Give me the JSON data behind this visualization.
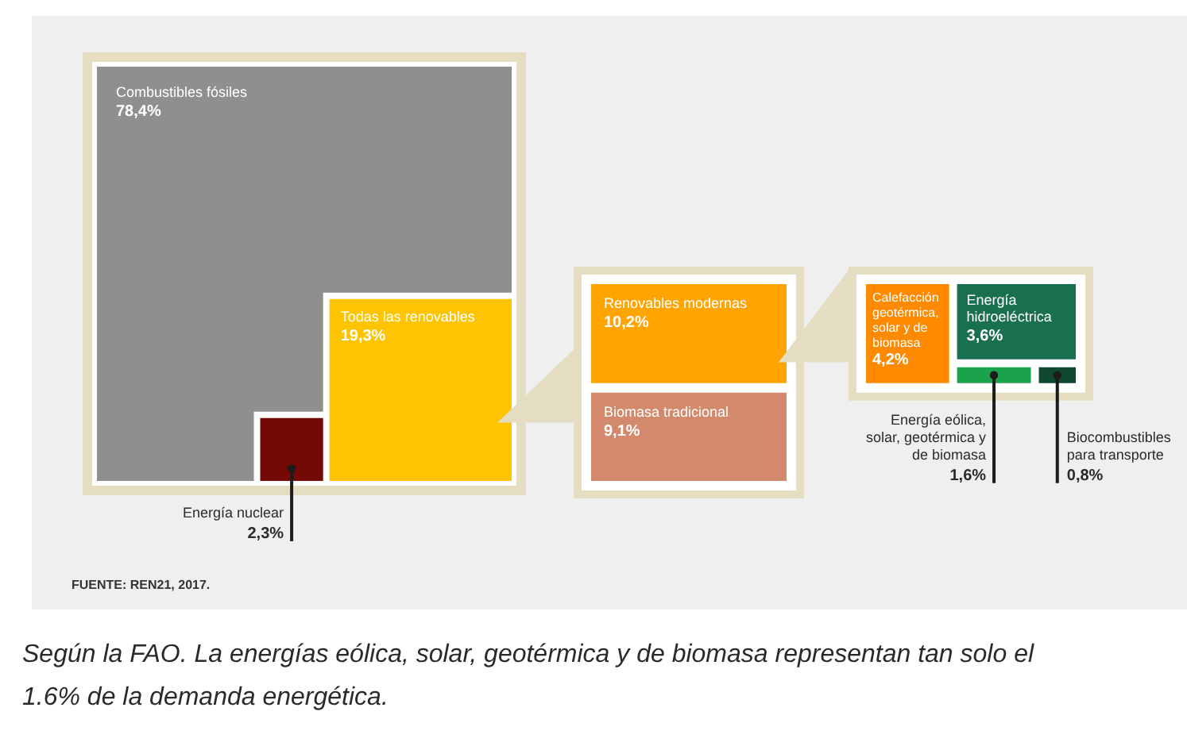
{
  "chart_data": {
    "type": "other",
    "categories": [
      "Combustibles fósiles",
      "Todas las renovables",
      "Energía nuclear",
      "Renovables modernas",
      "Biomasa tradicional",
      "Calefacción geotérmica, solar y de biomasa",
      "Energía hidroeléctrica",
      "Energía eólica, solar, geotérmica y de biomasa",
      "Biocombustibles para transporte"
    ],
    "values": [
      78.4,
      19.3,
      2.3,
      10.2,
      9.1,
      4.2,
      3.6,
      1.6,
      0.8
    ],
    "value_labels": [
      "78,4%",
      "19,3%",
      "2,3%",
      "10,2%",
      "9,1%",
      "4,2%",
      "3,6%",
      "1,6%",
      "0,8%"
    ],
    "colors": [
      "#8f8f8f",
      "#ffc400",
      "#740a06",
      "#ffa400",
      "#d38a6c",
      "#ff8a00",
      "#18704f",
      "#1ba34b",
      "#0f4a30"
    ],
    "annotations": [
      "FUENTE: REN21, 2017.",
      "Según la FAO. La energías eólica, solar, geotérmica y de biomasa representan tan solo el 1.6% de la demanda energética."
    ]
  }
}
